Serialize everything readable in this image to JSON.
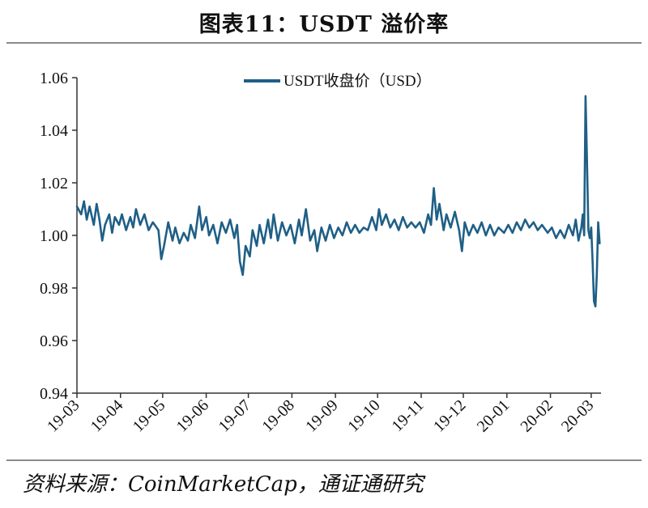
{
  "title": "图表11：USDT 溢价率",
  "source": "资料来源：CoinMarketCap，通证通研究",
  "chart_data": {
    "type": "line",
    "xlabel": "",
    "ylabel": "",
    "ylim": [
      0.94,
      1.06
    ],
    "yticks": [
      "1.06",
      "1.04",
      "1.02",
      "1.00",
      "0.98",
      "0.96",
      "0.94"
    ],
    "xticks": [
      "19-03",
      "19-04",
      "19-05",
      "19-06",
      "19-07",
      "19-08",
      "19-09",
      "19-10",
      "19-11",
      "19-12",
      "20-01",
      "20-02",
      "20-03"
    ],
    "x_range": [
      "2019-03-01",
      "2020-03-08"
    ],
    "grid": false,
    "legend": "top-center",
    "series": [
      {
        "name": "USDT收盘价（USD）",
        "color": "#1f5f86",
        "points": [
          [
            "2019-03-01",
            1.011
          ],
          [
            "2019-03-04",
            1.008
          ],
          [
            "2019-03-06",
            1.013
          ],
          [
            "2019-03-08",
            1.006
          ],
          [
            "2019-03-10",
            1.011
          ],
          [
            "2019-03-13",
            1.004
          ],
          [
            "2019-03-15",
            1.012
          ],
          [
            "2019-03-17",
            1.006
          ],
          [
            "2019-03-19",
            0.998
          ],
          [
            "2019-03-21",
            1.004
          ],
          [
            "2019-03-24",
            1.008
          ],
          [
            "2019-03-26",
            1.001
          ],
          [
            "2019-03-28",
            1.007
          ],
          [
            "2019-03-31",
            1.004
          ],
          [
            "2019-04-02",
            1.008
          ],
          [
            "2019-04-05",
            1.002
          ],
          [
            "2019-04-08",
            1.007
          ],
          [
            "2019-04-10",
            1.003
          ],
          [
            "2019-04-12",
            1.01
          ],
          [
            "2019-04-15",
            1.004
          ],
          [
            "2019-04-18",
            1.008
          ],
          [
            "2019-04-21",
            1.002
          ],
          [
            "2019-04-24",
            1.005
          ],
          [
            "2019-04-28",
            1.002
          ],
          [
            "2019-04-30",
            0.991
          ],
          [
            "2019-05-02",
            0.996
          ],
          [
            "2019-05-05",
            1.005
          ],
          [
            "2019-05-08",
            0.998
          ],
          [
            "2019-05-10",
            1.003
          ],
          [
            "2019-05-13",
            0.997
          ],
          [
            "2019-05-16",
            1.001
          ],
          [
            "2019-05-19",
            0.998
          ],
          [
            "2019-05-21",
            1.004
          ],
          [
            "2019-05-24",
            0.999
          ],
          [
            "2019-05-27",
            1.011
          ],
          [
            "2019-05-29",
            1.002
          ],
          [
            "2019-06-01",
            1.007
          ],
          [
            "2019-06-03",
            1.0
          ],
          [
            "2019-06-06",
            1.004
          ],
          [
            "2019-06-09",
            0.997
          ],
          [
            "2019-06-12",
            1.005
          ],
          [
            "2019-06-15",
            1.001
          ],
          [
            "2019-06-18",
            1.006
          ],
          [
            "2019-06-21",
            0.999
          ],
          [
            "2019-06-23",
            1.004
          ],
          [
            "2019-06-25",
            0.99
          ],
          [
            "2019-06-27",
            0.985
          ],
          [
            "2019-06-29",
            0.996
          ],
          [
            "2019-07-02",
            0.992
          ],
          [
            "2019-07-04",
            1.002
          ],
          [
            "2019-07-07",
            0.996
          ],
          [
            "2019-07-09",
            1.004
          ],
          [
            "2019-07-12",
            0.997
          ],
          [
            "2019-07-15",
            1.006
          ],
          [
            "2019-07-17",
            0.999
          ],
          [
            "2019-07-19",
            1.008
          ],
          [
            "2019-07-22",
            0.998
          ],
          [
            "2019-07-25",
            1.005
          ],
          [
            "2019-07-28",
            1.0
          ],
          [
            "2019-07-31",
            1.004
          ],
          [
            "2019-08-03",
            0.997
          ],
          [
            "2019-08-06",
            1.006
          ],
          [
            "2019-08-08",
            1.0
          ],
          [
            "2019-08-11",
            1.01
          ],
          [
            "2019-08-14",
            0.998
          ],
          [
            "2019-08-17",
            1.002
          ],
          [
            "2019-08-19",
            0.994
          ],
          [
            "2019-08-22",
            1.003
          ],
          [
            "2019-08-25",
            0.998
          ],
          [
            "2019-08-28",
            1.004
          ],
          [
            "2019-08-31",
            0.999
          ],
          [
            "2019-09-03",
            1.003
          ],
          [
            "2019-09-06",
            1.0
          ],
          [
            "2019-09-09",
            1.005
          ],
          [
            "2019-09-12",
            1.001
          ],
          [
            "2019-09-15",
            1.004
          ],
          [
            "2019-09-18",
            1.001
          ],
          [
            "2019-09-21",
            1.003
          ],
          [
            "2019-09-24",
            1.002
          ],
          [
            "2019-09-27",
            1.007
          ],
          [
            "2019-09-30",
            1.002
          ],
          [
            "2019-10-02",
            1.01
          ],
          [
            "2019-10-04",
            1.004
          ],
          [
            "2019-10-07",
            1.008
          ],
          [
            "2019-10-10",
            1.003
          ],
          [
            "2019-10-13",
            1.006
          ],
          [
            "2019-10-16",
            1.002
          ],
          [
            "2019-10-19",
            1.007
          ],
          [
            "2019-10-22",
            1.003
          ],
          [
            "2019-10-25",
            1.005
          ],
          [
            "2019-10-28",
            1.003
          ],
          [
            "2019-10-31",
            1.005
          ],
          [
            "2019-11-03",
            1.001
          ],
          [
            "2019-11-06",
            1.008
          ],
          [
            "2019-11-08",
            1.004
          ],
          [
            "2019-11-10",
            1.018
          ],
          [
            "2019-11-12",
            1.006
          ],
          [
            "2019-11-14",
            1.012
          ],
          [
            "2019-11-17",
            1.002
          ],
          [
            "2019-11-19",
            1.008
          ],
          [
            "2019-11-22",
            1.003
          ],
          [
            "2019-11-25",
            1.009
          ],
          [
            "2019-11-28",
            1.002
          ],
          [
            "2019-11-30",
            0.994
          ],
          [
            "2019-12-02",
            1.005
          ],
          [
            "2019-12-05",
            1.0
          ],
          [
            "2019-12-08",
            1.004
          ],
          [
            "2019-12-11",
            1.001
          ],
          [
            "2019-12-14",
            1.005
          ],
          [
            "2019-12-17",
            1.0
          ],
          [
            "2019-12-20",
            1.004
          ],
          [
            "2019-12-23",
            1.0
          ],
          [
            "2019-12-26",
            1.003
          ],
          [
            "2019-12-30",
            1.001
          ],
          [
            "2020-01-02",
            1.004
          ],
          [
            "2020-01-05",
            1.001
          ],
          [
            "2020-01-08",
            1.005
          ],
          [
            "2020-01-11",
            1.002
          ],
          [
            "2020-01-14",
            1.006
          ],
          [
            "2020-01-17",
            1.003
          ],
          [
            "2020-01-20",
            1.005
          ],
          [
            "2020-01-23",
            1.002
          ],
          [
            "2020-01-26",
            1.004
          ],
          [
            "2020-01-30",
            1.001
          ],
          [
            "2020-02-02",
            1.003
          ],
          [
            "2020-02-05",
            0.999
          ],
          [
            "2020-02-08",
            1.002
          ],
          [
            "2020-02-11",
            0.999
          ],
          [
            "2020-02-14",
            1.004
          ],
          [
            "2020-02-17",
            1.0
          ],
          [
            "2020-02-19",
            1.006
          ],
          [
            "2020-02-21",
            0.998
          ],
          [
            "2020-02-23",
            1.003
          ],
          [
            "2020-02-24",
            1.008
          ],
          [
            "2020-02-25",
            1.0
          ],
          [
            "2020-02-26",
            1.053
          ],
          [
            "2020-02-27",
            1.028
          ],
          [
            "2020-02-28",
            1.002
          ],
          [
            "2020-02-29",
            0.999
          ],
          [
            "2020-03-01",
            1.003
          ],
          [
            "2020-03-02",
            0.99
          ],
          [
            "2020-03-03",
            0.975
          ],
          [
            "2020-03-04",
            0.973
          ],
          [
            "2020-03-05",
            0.985
          ],
          [
            "2020-03-06",
            1.005
          ],
          [
            "2020-03-07",
            0.997
          ]
        ]
      }
    ]
  }
}
